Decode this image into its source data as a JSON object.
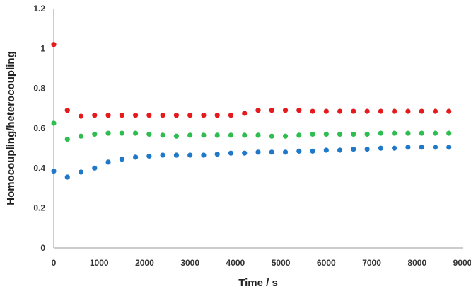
{
  "chart_data": {
    "type": "scatter",
    "title": "",
    "xlabel": "Time / s",
    "ylabel": "Homocoupling/heterocoupling",
    "xlim": [
      0,
      9000
    ],
    "ylim": [
      0,
      1.2
    ],
    "xticks": [
      "0",
      "1000",
      "2000",
      "3000",
      "4000",
      "5000",
      "6000",
      "7000",
      "8000",
      "9000"
    ],
    "yticks": [
      "0",
      "0.2",
      "0.4",
      "0.6",
      "0.8",
      "1",
      "1.2"
    ],
    "grid": false,
    "legend": "none",
    "x": [
      0,
      300,
      600,
      900,
      1200,
      1500,
      1800,
      2100,
      2400,
      2700,
      3000,
      3300,
      3600,
      3900,
      4200,
      4500,
      4800,
      5100,
      5400,
      5700,
      6000,
      6300,
      6600,
      6900,
      7200,
      7500,
      7800,
      8100,
      8400,
      8700
    ],
    "series": [
      {
        "color": "#e41a1c",
        "values": [
          1.02,
          0.69,
          0.66,
          0.665,
          0.665,
          0.665,
          0.665,
          0.665,
          0.665,
          0.665,
          0.665,
          0.665,
          0.665,
          0.665,
          0.675,
          0.69,
          0.69,
          0.69,
          0.69,
          0.685,
          0.685,
          0.685,
          0.685,
          0.685,
          0.685,
          0.685,
          0.685,
          0.685,
          0.685,
          0.685
        ]
      },
      {
        "color": "#2ebd4f",
        "values": [
          0.625,
          0.545,
          0.56,
          0.57,
          0.575,
          0.575,
          0.575,
          0.57,
          0.565,
          0.56,
          0.565,
          0.565,
          0.565,
          0.565,
          0.565,
          0.565,
          0.56,
          0.56,
          0.565,
          0.57,
          0.57,
          0.57,
          0.57,
          0.57,
          0.575,
          0.575,
          0.575,
          0.575,
          0.575,
          0.575
        ]
      },
      {
        "color": "#1f78c8",
        "values": [
          0.385,
          0.355,
          0.38,
          0.4,
          0.43,
          0.445,
          0.455,
          0.46,
          0.465,
          0.465,
          0.465,
          0.465,
          0.47,
          0.475,
          0.475,
          0.48,
          0.48,
          0.48,
          0.485,
          0.485,
          0.49,
          0.49,
          0.495,
          0.495,
          0.5,
          0.5,
          0.505,
          0.505,
          0.505,
          0.505
        ]
      }
    ]
  }
}
